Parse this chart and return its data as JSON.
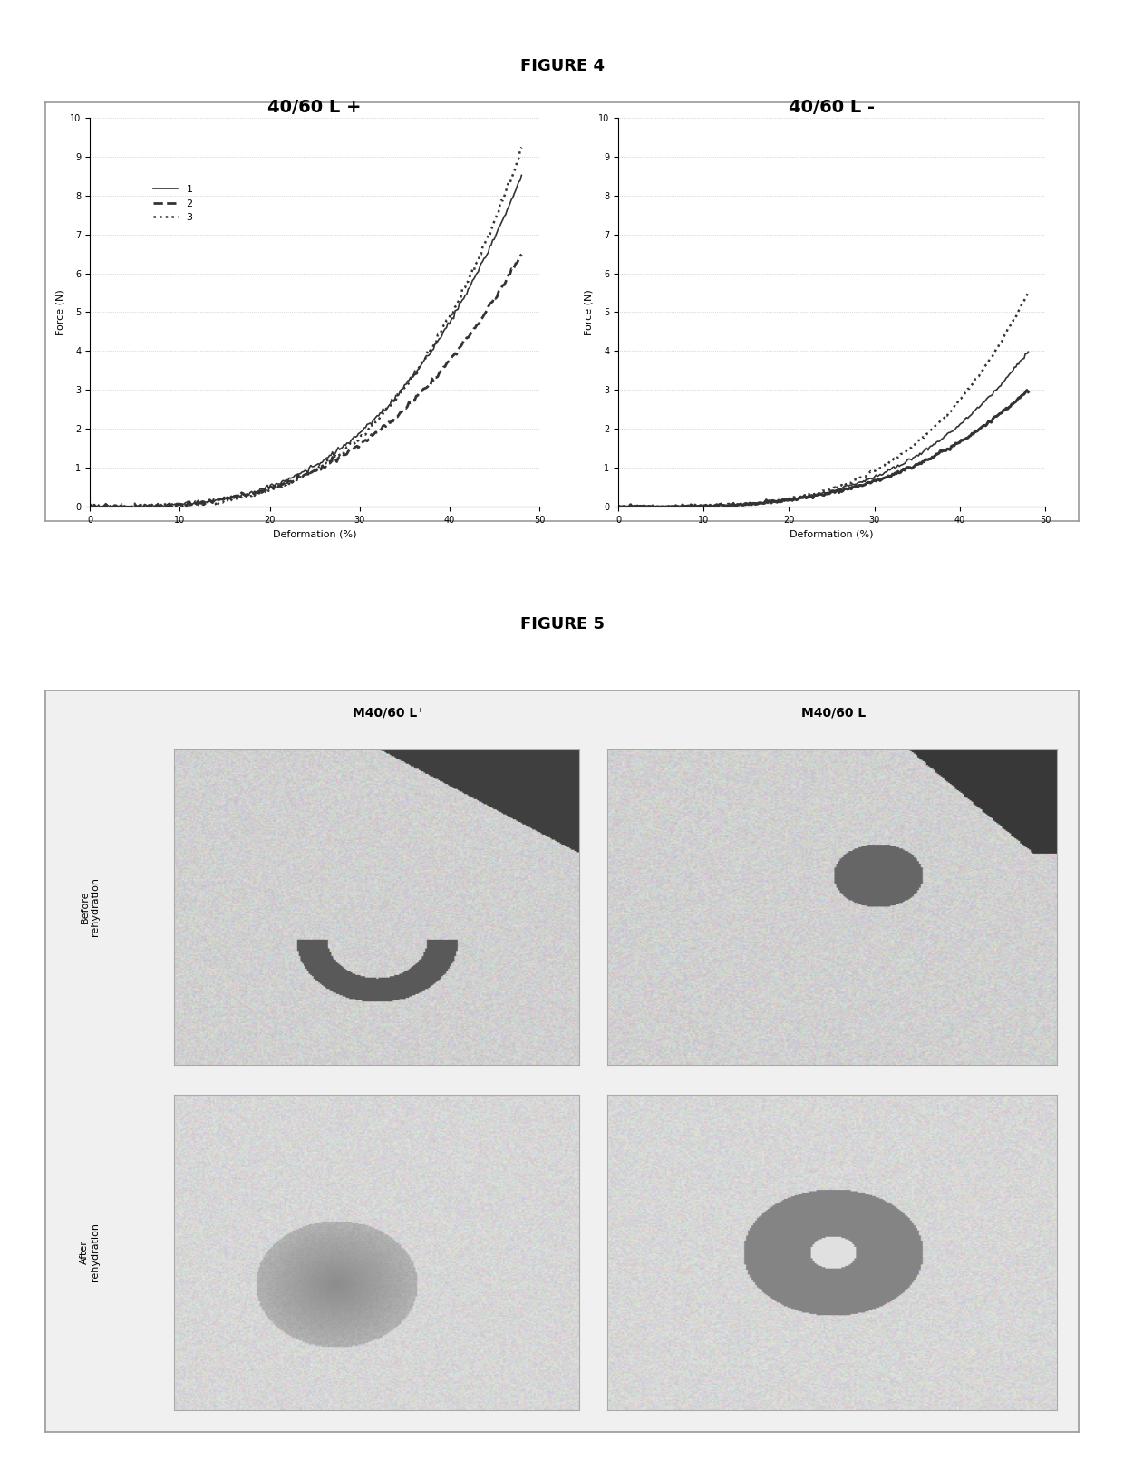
{
  "fig4_title": "FIGURE 4",
  "fig5_title": "FIGURE 5",
  "left_plot_title": "40/60 L +",
  "right_plot_title": "40/60 L -",
  "xlabel": "Deformation (%)",
  "ylabel": "Force (N)",
  "ylim": [
    0,
    10
  ],
  "xlim": [
    0,
    50
  ],
  "yticks": [
    0,
    1,
    2,
    3,
    4,
    5,
    6,
    7,
    8,
    9,
    10
  ],
  "xticks": [
    0,
    10,
    20,
    30,
    40,
    50
  ],
  "fig5_col_labels": [
    "M40/60 L⁺",
    "M40/60 L⁻"
  ],
  "fig5_row_labels": [
    "Before\nrehydration",
    "After\nrehydration"
  ],
  "background_color": "#ffffff",
  "line_color": "#333333",
  "title_fontsize": 13,
  "axis_label_fontsize": 8,
  "tick_fontsize": 7,
  "plot_title_fontsize": 14
}
